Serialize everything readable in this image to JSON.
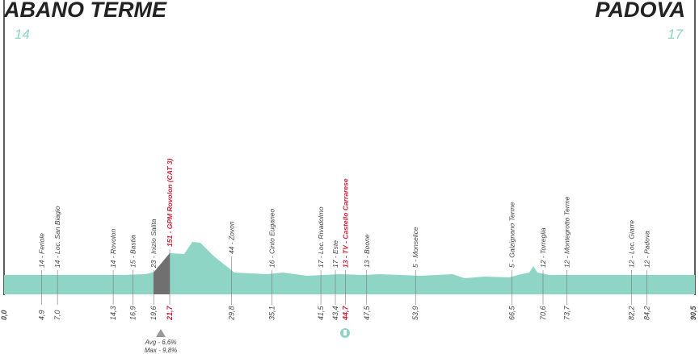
{
  "start": {
    "name": "ABANO TERME",
    "number": "14"
  },
  "finish": {
    "name": "PADOVA",
    "number": "17"
  },
  "distance": {
    "start": {
      "value": 0,
      "label": "0,0"
    },
    "end": {
      "value": 90.5,
      "label": "90,5"
    }
  },
  "climb": {
    "avg": "Avg - 6,6%",
    "max": "Max - 9,8%"
  },
  "waypoints": [
    {
      "km": {
        "value": 4.9,
        "label": "4,9"
      },
      "label": "14 - Feriole"
    },
    {
      "km": {
        "value": 7.0,
        "label": "7,0"
      },
      "label": "14 - Loc. San Biagio"
    },
    {
      "km": {
        "value": 14.3,
        "label": "14,3"
      },
      "label": "14 - Rovolon"
    },
    {
      "km": {
        "value": 16.9,
        "label": "16,9"
      },
      "label": "15 - Bastia"
    },
    {
      "km": {
        "value": 19.6,
        "label": "19,6"
      },
      "label": "23 - Inizio Salita"
    },
    {
      "km": {
        "value": 21.7,
        "label": "21,7"
      },
      "label": "151 - GPM Rovolon (CAT 3)",
      "highlight": true
    },
    {
      "km": {
        "value": 29.8,
        "label": "29,8"
      },
      "label": "44 - Zovon"
    },
    {
      "km": {
        "value": 35.1,
        "label": "35,1"
      },
      "label": "16 - Cinto Euganeo"
    },
    {
      "km": {
        "value": 41.5,
        "label": "41,5"
      },
      "label": "17 - Loc. Rivadolmo"
    },
    {
      "km": {
        "value": 43.4,
        "label": "43,4"
      },
      "label": "17 - Este"
    },
    {
      "km": {
        "value": 44.7,
        "label": "44,7"
      },
      "label": "13 - TV - Castello Carrarese",
      "highlight": true
    },
    {
      "km": {
        "value": 47.5,
        "label": "47,5"
      },
      "label": "13 - Boone"
    },
    {
      "km": {
        "value": 53.9,
        "label": "53,9"
      },
      "label": "5 - Monselice"
    },
    {
      "km": {
        "value": 66.5,
        "label": "66,5"
      },
      "label": "5 - Galzignano Terme"
    },
    {
      "km": {
        "value": 70.6,
        "label": "70,6"
      },
      "label": "12 - Torreglia"
    },
    {
      "km": {
        "value": 73.7,
        "label": "73,7"
      },
      "label": "12 - Montegrotto Terme"
    },
    {
      "km": {
        "value": 82.2,
        "label": "82,2"
      },
      "label": "12 - Loc. Giarre"
    },
    {
      "km": {
        "value": 84.2,
        "label": "84,2"
      },
      "label": "12 - Padova"
    }
  ]
}
